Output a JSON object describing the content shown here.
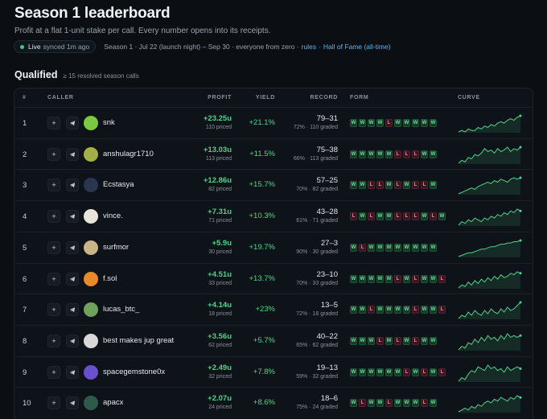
{
  "page": {
    "title": "Season 1 leaderboard",
    "subtitle": "Profit at a flat 1-unit stake per call. Every number opens into its receipts."
  },
  "status": {
    "live_label": "Live",
    "synced": "synced 1m ago",
    "season_info": "Season 1 · Jul 22 (launch night) – Sep 30 · everyone from zero ·",
    "rules_link": "rules",
    "hof_link": "Hall of Fame (all-time)",
    "live_color": "#3ecf72"
  },
  "section": {
    "title": "Qualified",
    "note": "≥ 15 resolved season calls"
  },
  "columns": {
    "rank": "#",
    "caller": "CALLER",
    "profit": "PROFIT",
    "yield": "YIELD",
    "record": "RECORD",
    "form": "FORM",
    "curve": "CURVE"
  },
  "icons": {
    "add": "plus-icon",
    "telegram": "telegram-icon"
  },
  "rows": [
    {
      "rank": "1",
      "name": "snk",
      "avatar_color": "#7ac943",
      "avatar_glyph": "",
      "profit": "+23.25u",
      "priced": "110 priced",
      "yield": "+21.1%",
      "record": "79–31",
      "graded": "72% · 110 graded",
      "form": [
        "W",
        "W",
        "W",
        "W",
        "L",
        "W",
        "W",
        "W",
        "W",
        "W"
      ],
      "curve": [
        2,
        3,
        2,
        4,
        3,
        3,
        5,
        4,
        6,
        5,
        7,
        6,
        8,
        9,
        8,
        10,
        11,
        10,
        12,
        13
      ]
    },
    {
      "rank": "2",
      "name": "anshulagr1710",
      "avatar_color": "#a3b04a",
      "avatar_glyph": "",
      "profit": "+13.03u",
      "priced": "113 priced",
      "yield": "+11.5%",
      "record": "75–38",
      "graded": "66% · 113 graded",
      "form": [
        "W",
        "W",
        "W",
        "W",
        "W",
        "L",
        "L",
        "L",
        "W",
        "W"
      ],
      "curve": [
        2,
        4,
        3,
        6,
        5,
        8,
        7,
        9,
        12,
        10,
        11,
        9,
        12,
        10,
        11,
        13,
        10,
        12,
        11,
        13
      ]
    },
    {
      "rank": "3",
      "name": "Ecstasya",
      "avatar_color": "#2a3550",
      "avatar_glyph": "",
      "profit": "+12.86u",
      "priced": "82 priced",
      "yield": "+15.7%",
      "record": "57–25",
      "graded": "70% · 82 graded",
      "form": [
        "W",
        "W",
        "L",
        "L",
        "W",
        "L",
        "W",
        "L",
        "L",
        "W"
      ],
      "curve": [
        2,
        3,
        4,
        5,
        6,
        5,
        7,
        8,
        9,
        10,
        9,
        11,
        10,
        12,
        11,
        10,
        12,
        13,
        12,
        13
      ]
    },
    {
      "rank": "4",
      "name": "vince.",
      "avatar_color": "#e8e4dc",
      "avatar_glyph": "",
      "profit": "+7.31u",
      "priced": "71 priced",
      "yield": "+10.3%",
      "record": "43–28",
      "graded": "61% · 71 graded",
      "form": [
        "L",
        "W",
        "L",
        "W",
        "W",
        "L",
        "L",
        "L",
        "W",
        "L",
        "W"
      ],
      "curve": [
        3,
        5,
        4,
        6,
        5,
        7,
        6,
        5,
        7,
        6,
        8,
        7,
        9,
        8,
        10,
        9,
        11,
        10,
        12,
        11
      ]
    },
    {
      "rank": "5",
      "name": "surfmor",
      "avatar_color": "#c9b48a",
      "avatar_glyph": "",
      "profit": "+5.9u",
      "priced": "30 priced",
      "yield": "+19.7%",
      "record": "27–3",
      "graded": "90% · 30 graded",
      "form": [
        "W",
        "L",
        "W",
        "W",
        "W",
        "W",
        "W",
        "W",
        "W",
        "W"
      ],
      "curve": [
        1,
        2,
        3,
        4,
        4,
        5,
        6,
        7,
        7,
        8,
        9,
        9,
        10,
        11,
        11,
        12,
        12,
        13,
        13,
        14
      ]
    },
    {
      "rank": "6",
      "name": "f.sol",
      "avatar_color": "#e88a2a",
      "avatar_glyph": "",
      "profit": "+4.51u",
      "priced": "33 priced",
      "yield": "+13.7%",
      "record": "23–10",
      "graded": "70% · 33 graded",
      "form": [
        "W",
        "W",
        "W",
        "W",
        "W",
        "L",
        "W",
        "L",
        "W",
        "W",
        "L"
      ],
      "curve": [
        2,
        4,
        3,
        6,
        4,
        7,
        5,
        8,
        6,
        9,
        7,
        10,
        8,
        11,
        9,
        10,
        12,
        11,
        13,
        12
      ]
    },
    {
      "rank": "7",
      "name": "lucas_btc_",
      "avatar_color": "#6fa25a",
      "avatar_glyph": "",
      "profit": "+4.14u",
      "priced": "18 priced",
      "yield": "+23%",
      "record": "13–5",
      "graded": "72% · 18 graded",
      "form": [
        "W",
        "W",
        "L",
        "W",
        "W",
        "W",
        "W",
        "L",
        "W",
        "W",
        "L"
      ],
      "curve": [
        3,
        5,
        4,
        7,
        5,
        8,
        6,
        5,
        8,
        6,
        9,
        7,
        6,
        9,
        7,
        10,
        8,
        9,
        11,
        13
      ]
    },
    {
      "rank": "8",
      "name": "best makes jup great",
      "avatar_color": "#d8d8d8",
      "avatar_glyph": "",
      "profit": "+3.56u",
      "priced": "62 priced",
      "yield": "+5.7%",
      "record": "40–22",
      "graded": "65% · 62 graded",
      "form": [
        "W",
        "W",
        "W",
        "L",
        "W",
        "L",
        "W",
        "L",
        "W",
        "W"
      ],
      "curve": [
        2,
        4,
        3,
        6,
        5,
        8,
        6,
        9,
        7,
        10,
        8,
        9,
        7,
        10,
        8,
        11,
        9,
        10,
        9,
        10
      ]
    },
    {
      "rank": "9",
      "name": "spacegemstone0x",
      "avatar_color": "#6a4fcf",
      "avatar_glyph": "",
      "profit": "+2.49u",
      "priced": "32 priced",
      "yield": "+7.8%",
      "record": "19–13",
      "graded": "59% · 32 graded",
      "form": [
        "W",
        "W",
        "W",
        "W",
        "W",
        "W",
        "L",
        "W",
        "L",
        "W",
        "L"
      ],
      "curve": [
        2,
        4,
        3,
        6,
        8,
        7,
        10,
        9,
        8,
        11,
        9,
        10,
        8,
        9,
        7,
        10,
        8,
        9,
        10,
        9
      ]
    },
    {
      "rank": "10",
      "name": "apacx",
      "avatar_color": "#2e5a4a",
      "avatar_glyph": "",
      "profit": "+2.07u",
      "priced": "24 priced",
      "yield": "+8.6%",
      "record": "18–6",
      "graded": "75% · 24 graded",
      "form": [
        "W",
        "L",
        "W",
        "W",
        "L",
        "W",
        "W",
        "W",
        "L",
        "W"
      ],
      "curve": [
        2,
        3,
        4,
        3,
        5,
        4,
        6,
        5,
        7,
        8,
        7,
        9,
        8,
        10,
        9,
        8,
        10,
        9,
        11,
        10
      ]
    }
  ]
}
